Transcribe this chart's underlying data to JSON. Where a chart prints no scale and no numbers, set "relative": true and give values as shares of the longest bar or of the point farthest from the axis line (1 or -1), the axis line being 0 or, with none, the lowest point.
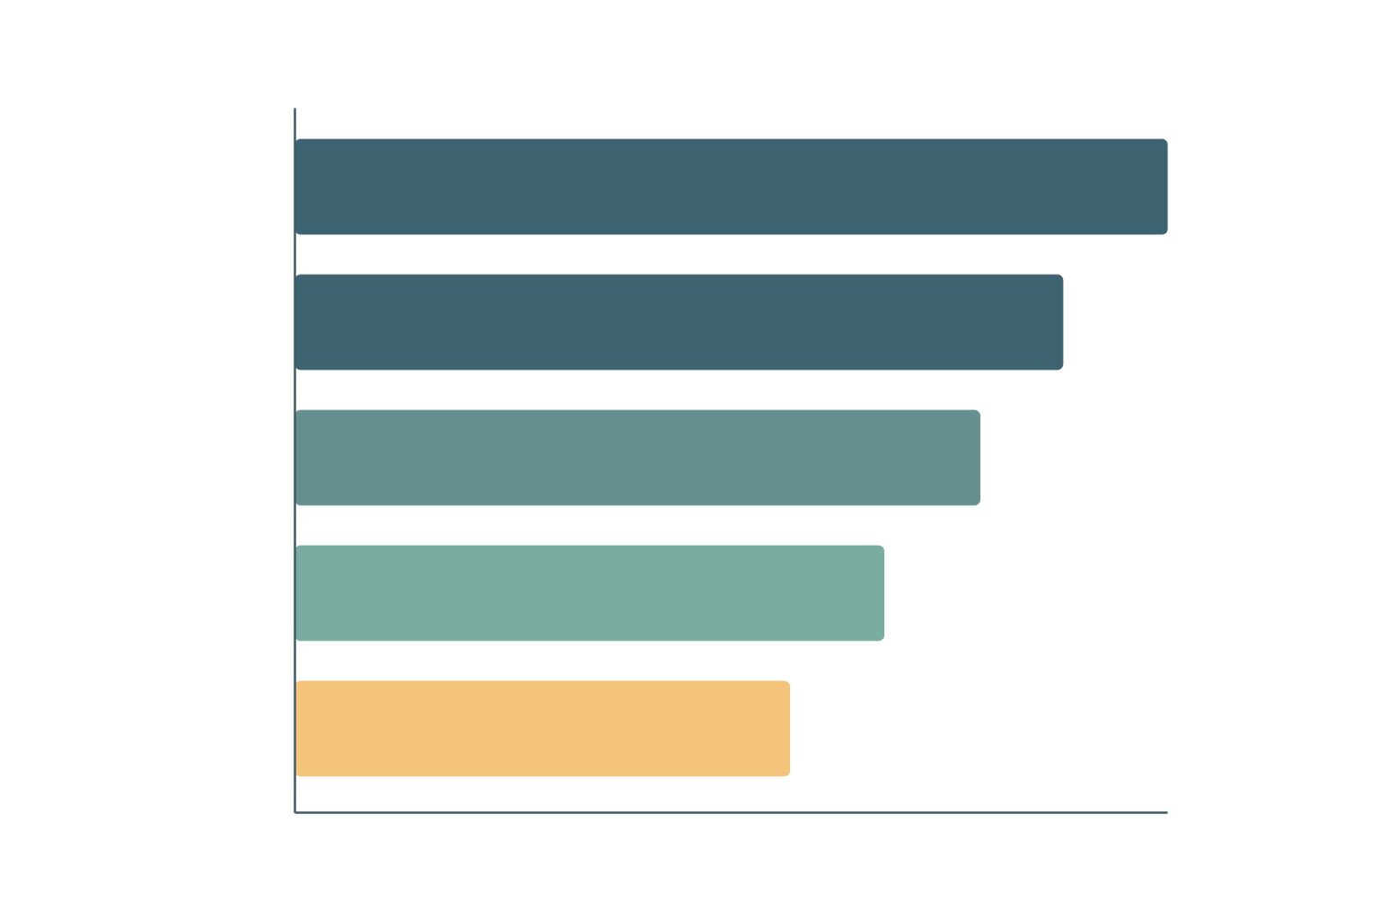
{
  "chart_data": {
    "type": "bar",
    "orientation": "horizontal",
    "relative": true,
    "categories": [
      null,
      null,
      null,
      null,
      null
    ],
    "values": [
      1,
      0.88,
      0.785,
      0.675,
      0.567
    ],
    "colors": [
      "#3d6370",
      "#3d6370",
      "#66908f",
      "#7aaca2",
      "#f3c47a"
    ]
  }
}
